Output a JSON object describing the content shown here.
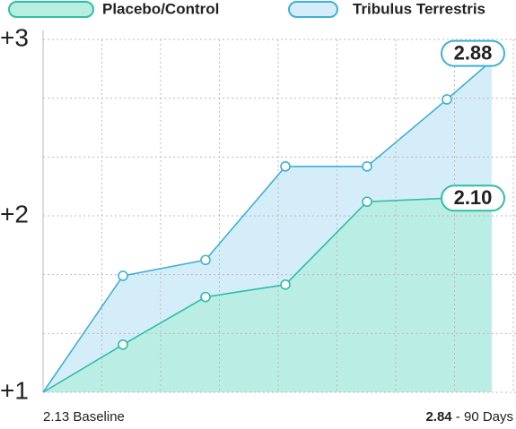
{
  "chart_data": {
    "type": "area",
    "categories": [
      null,
      null,
      null,
      null,
      null,
      null,
      null
    ],
    "series": [
      {
        "name": "Placebo/Control",
        "color": "#2dbfa5",
        "fill": "#b8ede1",
        "values": [
          1,
          1.27,
          1.54,
          1.61,
          2.08,
          2.1,
          2.1
        ],
        "value_labels": [
          null,
          null,
          null,
          null,
          null,
          null,
          "2.10"
        ]
      },
      {
        "name": "Tribulus Terrestris",
        "color": "#3fb0d6",
        "fill": "#d5edf8",
        "values": [
          1,
          1.66,
          1.75,
          2.28,
          2.28,
          2.66,
          2.88
        ],
        "value_labels": [
          null,
          null,
          null,
          null,
          null,
          null,
          "2.88"
        ]
      }
    ],
    "ylim": [
      1,
      3
    ],
    "yticks": [
      {
        "value": 1,
        "label": "+1"
      },
      {
        "value": 2,
        "label": "+2"
      },
      {
        "value": 3,
        "label": "+3"
      }
    ],
    "x_start_label": "2.13 Baseline",
    "x_end_label_bold": "2.84",
    "x_end_label_rest": " - 90 Days",
    "grid": true
  }
}
